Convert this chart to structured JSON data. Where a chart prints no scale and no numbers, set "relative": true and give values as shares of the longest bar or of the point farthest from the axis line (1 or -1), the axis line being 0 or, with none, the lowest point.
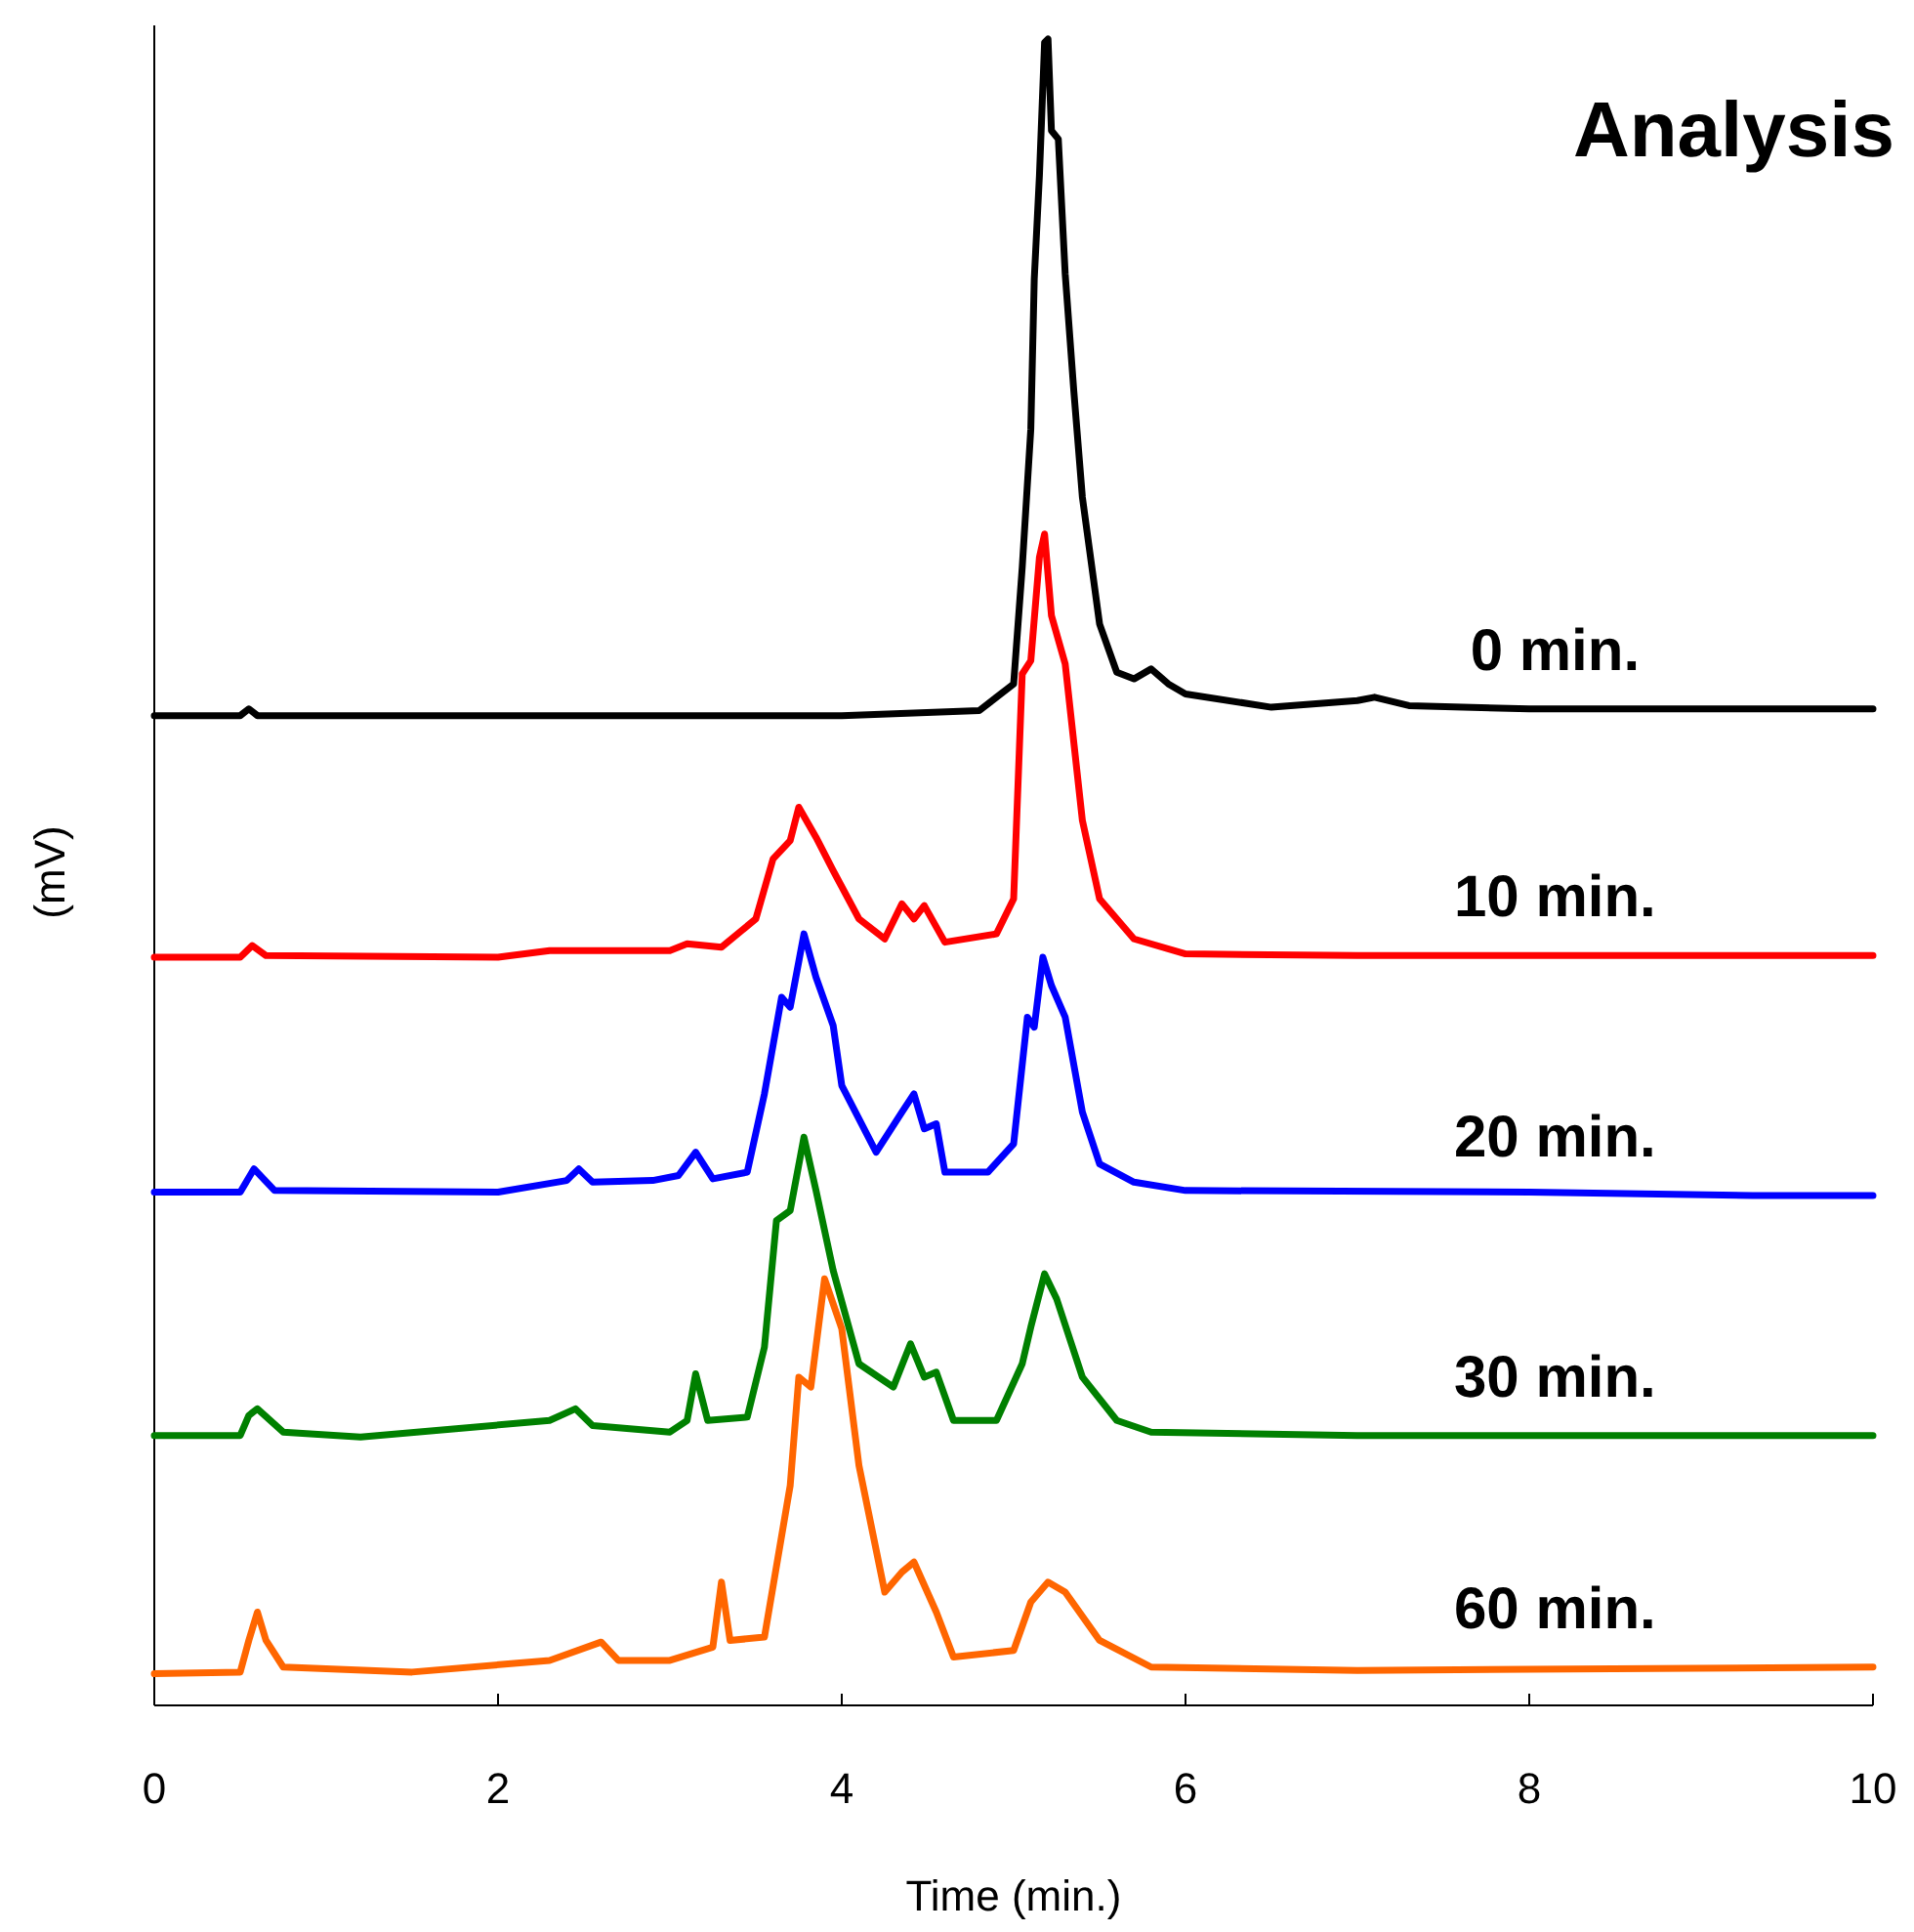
{
  "chart_data": {
    "type": "line",
    "title": "Analysis",
    "xlabel": "Time (min.)",
    "ylabel": "(mV)",
    "relative": true,
    "xlim": [
      0,
      10
    ],
    "xticks": [
      0,
      2,
      4,
      6,
      8,
      10
    ],
    "grid": false,
    "marker": "none",
    "line_style": "solid",
    "series": [
      {
        "name": "0 min.",
        "color": "#000000",
        "x": [
          0,
          0.5,
          0.55,
          0.6,
          2,
          3,
          4,
          4.8,
          5,
          5.05,
          5.1,
          5.12,
          5.15,
          5.18,
          5.2,
          5.22,
          5.26,
          5.3,
          5.35,
          5.4,
          5.5,
          5.6,
          5.7,
          5.8,
          5.9,
          6,
          6.5,
          7,
          7.1,
          7.3,
          8,
          10
        ],
        "values": [
          0.594,
          0.594,
          0.598,
          0.594,
          0.594,
          0.594,
          0.594,
          0.597,
          0.613,
          0.683,
          0.766,
          0.856,
          0.918,
          0.998,
          1.0,
          0.945,
          0.94,
          0.859,
          0.789,
          0.725,
          0.649,
          0.62,
          0.616,
          0.622,
          0.613,
          0.607,
          0.599,
          0.603,
          0.605,
          0.6,
          0.598,
          0.598
        ]
      },
      {
        "name": "10 min.",
        "color": "#ff0000",
        "x": [
          0,
          0.5,
          0.57,
          0.65,
          2,
          2.3,
          3,
          3.1,
          3.3,
          3.5,
          3.6,
          3.7,
          3.75,
          3.85,
          3.95,
          4.1,
          4.25,
          4.35,
          4.42,
          4.48,
          4.6,
          4.9,
          5,
          5.05,
          5.1,
          5.15,
          5.18,
          5.22,
          5.3,
          5.4,
          5.5,
          5.7,
          6,
          7,
          10
        ],
        "values": [
          0.449,
          0.449,
          0.456,
          0.45,
          0.449,
          0.453,
          0.453,
          0.457,
          0.455,
          0.472,
          0.508,
          0.519,
          0.539,
          0.521,
          0.501,
          0.472,
          0.46,
          0.481,
          0.472,
          0.48,
          0.458,
          0.463,
          0.484,
          0.619,
          0.627,
          0.689,
          0.703,
          0.654,
          0.625,
          0.531,
          0.484,
          0.46,
          0.451,
          0.45,
          0.45
        ]
      },
      {
        "name": "20 min.",
        "color": "#0000ff",
        "x": [
          0,
          0.5,
          0.58,
          0.7,
          2,
          2.4,
          2.47,
          2.55,
          2.9,
          3.05,
          3.15,
          3.25,
          3.45,
          3.55,
          3.65,
          3.7,
          3.78,
          3.85,
          3.95,
          4,
          4.2,
          4.35,
          4.42,
          4.48,
          4.55,
          4.6,
          4.85,
          5,
          5.08,
          5.12,
          5.17,
          5.22,
          5.3,
          5.4,
          5.5,
          5.7,
          6,
          8,
          9.3,
          10
        ],
        "values": [
          0.308,
          0.308,
          0.322,
          0.309,
          0.308,
          0.315,
          0.322,
          0.314,
          0.315,
          0.318,
          0.332,
          0.316,
          0.32,
          0.367,
          0.425,
          0.419,
          0.463,
          0.437,
          0.408,
          0.372,
          0.332,
          0.356,
          0.367,
          0.346,
          0.349,
          0.32,
          0.32,
          0.337,
          0.413,
          0.407,
          0.449,
          0.432,
          0.413,
          0.356,
          0.325,
          0.314,
          0.309,
          0.308,
          0.306,
          0.306
        ]
      },
      {
        "name": "30 min.",
        "color": "#008000",
        "x": [
          0,
          0.5,
          0.55,
          0.6,
          0.75,
          1.2,
          2.3,
          2.45,
          2.55,
          3,
          3.1,
          3.15,
          3.22,
          3.45,
          3.55,
          3.62,
          3.7,
          3.78,
          3.85,
          3.95,
          4.1,
          4.3,
          4.4,
          4.48,
          4.55,
          4.65,
          4.9,
          5.05,
          5.1,
          5.18,
          5.25,
          5.4,
          5.6,
          5.8,
          7,
          10
        ],
        "values": [
          0.162,
          0.162,
          0.174,
          0.178,
          0.164,
          0.161,
          0.171,
          0.178,
          0.168,
          0.164,
          0.171,
          0.199,
          0.171,
          0.173,
          0.215,
          0.291,
          0.297,
          0.341,
          0.309,
          0.261,
          0.205,
          0.191,
          0.217,
          0.197,
          0.2,
          0.171,
          0.171,
          0.205,
          0.227,
          0.259,
          0.244,
          0.197,
          0.171,
          0.164,
          0.162,
          0.162
        ]
      },
      {
        "name": "60 min.",
        "color": "#ff6600",
        "x": [
          0,
          0.5,
          0.55,
          0.6,
          0.65,
          0.75,
          1.5,
          2.3,
          2.6,
          2.7,
          3,
          3.25,
          3.3,
          3.35,
          3.55,
          3.7,
          3.75,
          3.82,
          3.9,
          4,
          4.1,
          4.25,
          4.35,
          4.42,
          4.55,
          4.65,
          5,
          5.1,
          5.2,
          5.3,
          5.5,
          5.8,
          7,
          10
        ],
        "values": [
          0.019,
          0.02,
          0.039,
          0.056,
          0.039,
          0.023,
          0.02,
          0.027,
          0.038,
          0.027,
          0.027,
          0.035,
          0.074,
          0.039,
          0.041,
          0.132,
          0.197,
          0.191,
          0.256,
          0.226,
          0.144,
          0.068,
          0.08,
          0.086,
          0.056,
          0.029,
          0.033,
          0.062,
          0.074,
          0.068,
          0.039,
          0.023,
          0.021,
          0.023
        ]
      }
    ]
  }
}
